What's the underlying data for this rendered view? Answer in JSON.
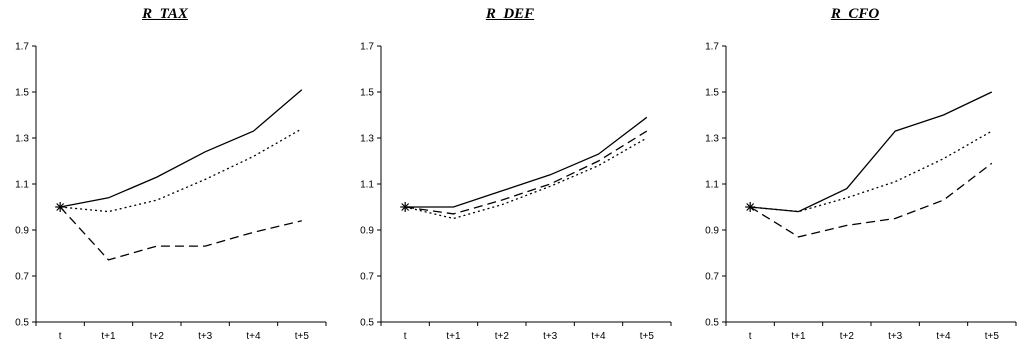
{
  "chart_data": [
    {
      "type": "line",
      "title": "R_TAX",
      "categories": [
        "t",
        "t+1",
        "t+2",
        "t+3",
        "t+4",
        "t+5"
      ],
      "ylim": [
        0.5,
        1.7
      ],
      "yticks": [
        "0.5",
        "0.7",
        "0.9",
        "1.1",
        "1.3",
        "1.5",
        "1.7"
      ],
      "grid": false,
      "series": [
        {
          "style": "solid",
          "values": [
            1.0,
            1.04,
            1.13,
            1.24,
            1.33,
            1.51
          ]
        },
        {
          "style": "dotted",
          "values": [
            1.0,
            0.98,
            1.03,
            1.12,
            1.22,
            1.34
          ]
        },
        {
          "style": "dashed",
          "values": [
            1.0,
            0.77,
            0.83,
            0.83,
            0.89,
            0.94
          ]
        }
      ]
    },
    {
      "type": "line",
      "title": "R_DEF",
      "categories": [
        "t",
        "t+1",
        "t+2",
        "t+3",
        "t+4",
        "t+5"
      ],
      "ylim": [
        0.5,
        1.7
      ],
      "yticks": [
        "0.5",
        "0.7",
        "0.9",
        "1.1",
        "1.3",
        "1.5",
        "1.7"
      ],
      "grid": false,
      "series": [
        {
          "style": "solid",
          "values": [
            1.0,
            1.0,
            1.07,
            1.14,
            1.23,
            1.39
          ]
        },
        {
          "style": "dotted",
          "values": [
            1.0,
            0.95,
            1.01,
            1.09,
            1.18,
            1.3
          ]
        },
        {
          "style": "dashed",
          "values": [
            1.0,
            0.97,
            1.03,
            1.1,
            1.2,
            1.33
          ]
        }
      ]
    },
    {
      "type": "line",
      "title": "R_CFO",
      "categories": [
        "t",
        "t+1",
        "t+2",
        "t+3",
        "t+4",
        "t+5"
      ],
      "ylim": [
        0.5,
        1.7
      ],
      "yticks": [
        "0.5",
        "0.7",
        "0.9",
        "1.1",
        "1.3",
        "1.5",
        "1.7"
      ],
      "grid": false,
      "series": [
        {
          "style": "solid",
          "values": [
            1.0,
            0.98,
            1.08,
            1.33,
            1.4,
            1.5
          ]
        },
        {
          "style": "dotted",
          "values": [
            1.0,
            0.98,
            1.04,
            1.11,
            1.21,
            1.33
          ]
        },
        {
          "style": "dashed",
          "values": [
            1.0,
            0.87,
            0.92,
            0.95,
            1.03,
            1.19
          ]
        }
      ]
    }
  ]
}
